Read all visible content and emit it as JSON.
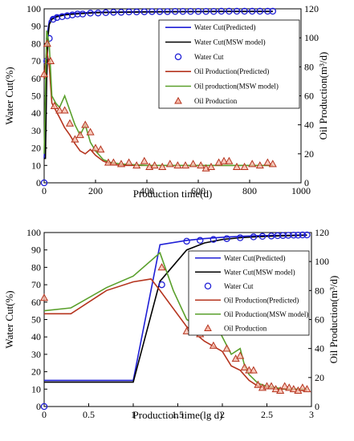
{
  "chart_data": [
    {
      "type": "line",
      "xlabel": "Production time(d)",
      "ylabel_left": "Water Cut(%)",
      "ylabel_right": "Oil Production(m³/d)",
      "xlim": [
        0,
        1000
      ],
      "ylim_left": [
        0,
        100
      ],
      "ylim_right": [
        0,
        120
      ],
      "x_ticks": [
        "0",
        "200",
        "400",
        "600",
        "800",
        "1000"
      ],
      "y_left_ticks": [
        "0",
        "10",
        "20",
        "30",
        "40",
        "50",
        "60",
        "70",
        "80",
        "90",
        "100"
      ],
      "y_right_ticks": [
        "0",
        "20",
        "40",
        "60",
        "80",
        "100",
        "120"
      ],
      "legend_position": "top-right",
      "series": [
        {
          "name": "Water Cut(Predicted)",
          "axis": "left",
          "style": "line",
          "color": "#1f1fd6",
          "x": [
            0,
            5,
            10,
            15,
            20,
            30,
            50,
            80,
            120,
            200,
            300,
            400,
            500,
            600,
            700,
            800,
            890
          ],
          "y": [
            14,
            30,
            70,
            88,
            93,
            95,
            96,
            97,
            97.5,
            98,
            98.2,
            98.4,
            98.5,
            98.5,
            98.6,
            98.6,
            98.6
          ]
        },
        {
          "name": "Water Cut(MSW model)",
          "axis": "left",
          "style": "line",
          "color": "#000000",
          "x": [
            0,
            5,
            10,
            15,
            20,
            30,
            50,
            80,
            120,
            200,
            300,
            400,
            500,
            600,
            700,
            800,
            890
          ],
          "y": [
            14,
            14,
            60,
            84,
            91,
            94,
            95.5,
            96.5,
            97,
            97.8,
            98,
            98.2,
            98.3,
            98.4,
            98.5,
            98.5,
            98.5
          ]
        },
        {
          "name": "Water Cut",
          "axis": "left",
          "style": "marker",
          "marker": "circle",
          "color": "#1f1fd6",
          "x": [
            0,
            10,
            20,
            35,
            50,
            70,
            90,
            110,
            130,
            150,
            180,
            210,
            240,
            270,
            300,
            330,
            360,
            390,
            420,
            450,
            480,
            510,
            540,
            570,
            600,
            630,
            660,
            690,
            720,
            750,
            780,
            810,
            840,
            870,
            890
          ],
          "y": [
            0,
            70,
            83,
            94,
            95,
            95.5,
            96,
            96.5,
            97,
            97,
            97.5,
            97.6,
            97.8,
            98,
            98,
            98.2,
            98.2,
            98.3,
            98.4,
            98.4,
            98.4,
            98.5,
            98.5,
            98.5,
            98.5,
            98.5,
            98.5,
            98.6,
            98.6,
            98.6,
            98.6,
            98.6,
            98.6,
            98.6,
            98.6
          ]
        },
        {
          "name": "Oil Production(Predicted)",
          "axis": "right",
          "style": "line",
          "color": "#b5341e",
          "x": [
            0,
            10,
            20,
            30,
            45,
            60,
            80,
            100,
            120,
            140,
            160,
            180,
            200,
            230,
            260,
            300,
            400,
            500,
            600,
            700,
            800,
            890
          ],
          "y": [
            72,
            92,
            80,
            55,
            50,
            45,
            38,
            33,
            27,
            22,
            20,
            23,
            19,
            15,
            13,
            12,
            12,
            12,
            12,
            12,
            12,
            12
          ]
        },
        {
          "name": "Oil production(MSW model)",
          "axis": "right",
          "style": "line",
          "color": "#5aa02c",
          "x": [
            0,
            10,
            20,
            30,
            45,
            60,
            80,
            100,
            120,
            140,
            160,
            180,
            200,
            230,
            260,
            300,
            400,
            500,
            600,
            700,
            800,
            890
          ],
          "y": [
            20,
            105,
            95,
            60,
            55,
            52,
            60,
            50,
            40,
            33,
            40,
            28,
            22,
            16,
            14,
            13,
            12,
            12,
            12,
            12,
            12,
            12
          ]
        },
        {
          "name": "Oil Production",
          "axis": "right",
          "style": "marker",
          "marker": "triangle",
          "color": "#b5341e",
          "x": [
            0,
            12,
            25,
            40,
            60,
            80,
            100,
            120,
            140,
            160,
            180,
            200,
            220,
            250,
            270,
            300,
            330,
            360,
            390,
            410,
            430,
            460,
            490,
            520,
            550,
            580,
            610,
            630,
            650,
            680,
            700,
            720,
            750,
            780,
            810,
            840,
            870,
            890
          ],
          "y": [
            75,
            96,
            84,
            53,
            50,
            50,
            41,
            30,
            33,
            40,
            35,
            24,
            23,
            14,
            14,
            13,
            14,
            12,
            15,
            11,
            12,
            11,
            13,
            12,
            12,
            13,
            12,
            10,
            11,
            14,
            15,
            15,
            11,
            11,
            13,
            12,
            14,
            13
          ]
        }
      ]
    },
    {
      "type": "line",
      "xlabel": "Production time(lg d)",
      "ylabel_left": "Water Cut(%)",
      "ylabel_right": "Oil Production(m³/d)",
      "xlim": [
        0,
        3
      ],
      "ylim_left": [
        0,
        100
      ],
      "ylim_right": [
        0,
        120
      ],
      "x_ticks": [
        "0",
        "0.5",
        "1",
        "1.5",
        "2",
        "2.5",
        "3"
      ],
      "y_left_ticks": [
        "0",
        "10",
        "20",
        "30",
        "40",
        "50",
        "60",
        "70",
        "80",
        "90",
        "100"
      ],
      "y_right_ticks": [
        "0",
        "20",
        "40",
        "60",
        "80",
        "100",
        "120"
      ],
      "legend_position": "top-right",
      "series": [
        {
          "name": "Water Cut(Predicted)",
          "axis": "left",
          "style": "line",
          "color": "#1f1fd6",
          "x": [
            0,
            1.0,
            1.3,
            1.6,
            1.8,
            2.0,
            2.2,
            2.4,
            2.6,
            2.8,
            2.95
          ],
          "y": [
            15,
            15,
            93,
            95.5,
            96.5,
            97.3,
            97.8,
            98.2,
            98.4,
            98.5,
            98.6
          ]
        },
        {
          "name": "Water Cut(MSW model)",
          "axis": "left",
          "style": "line",
          "color": "#000000",
          "x": [
            0,
            1.0,
            1.3,
            1.6,
            1.8,
            2.0,
            2.2,
            2.4,
            2.6,
            2.8,
            2.95
          ],
          "y": [
            14,
            14,
            72,
            90,
            94,
            96,
            97,
            97.6,
            98,
            98.3,
            98.5
          ]
        },
        {
          "name": "Water Cut",
          "axis": "left",
          "style": "marker",
          "marker": "circle",
          "color": "#1f1fd6",
          "x": [
            0,
            1.32,
            1.6,
            1.75,
            1.9,
            2.05,
            2.2,
            2.35,
            2.45,
            2.55,
            2.62,
            2.68,
            2.74,
            2.8,
            2.85,
            2.9,
            2.95
          ],
          "y": [
            0,
            70,
            95,
            95.5,
            96,
            96.5,
            97,
            97.5,
            97.8,
            98,
            98.2,
            98.3,
            98.4,
            98.5,
            98.5,
            98.6,
            98.6
          ]
        },
        {
          "name": "Oil Production(Predicted)",
          "axis": "right",
          "style": "line",
          "color": "#b5341e",
          "x": [
            0,
            0.3,
            0.7,
            1.0,
            1.2,
            1.3,
            1.6,
            1.8,
            2.0,
            2.1,
            2.2,
            2.3,
            2.4,
            2.5,
            2.6,
            2.7,
            2.8,
            2.9,
            2.95
          ],
          "y": [
            64,
            64,
            80,
            86,
            88,
            80,
            55,
            45,
            38,
            28,
            25,
            18,
            14,
            13,
            12,
            12,
            12,
            11,
            11
          ]
        },
        {
          "name": "Oil Production(MSW model)",
          "axis": "right",
          "style": "line",
          "color": "#5aa02c",
          "x": [
            0,
            0.3,
            0.7,
            1.0,
            1.3,
            1.45,
            1.6,
            1.75,
            1.9,
            2.0,
            2.1,
            2.2,
            2.25,
            2.3,
            2.4,
            2.5,
            2.6,
            2.7,
            2.8,
            2.9,
            2.95
          ],
          "y": [
            66,
            68,
            82,
            90,
            106,
            80,
            60,
            55,
            60,
            48,
            36,
            40,
            28,
            22,
            16,
            14,
            13,
            12,
            12,
            12,
            12
          ]
        },
        {
          "name": "Oil Production",
          "axis": "right",
          "style": "marker",
          "marker": "triangle",
          "color": "#b5341e",
          "x": [
            0,
            1.32,
            1.6,
            1.75,
            1.9,
            2.05,
            2.15,
            2.2,
            2.25,
            2.3,
            2.35,
            2.4,
            2.45,
            2.5,
            2.55,
            2.6,
            2.65,
            2.7,
            2.75,
            2.8,
            2.85,
            2.9,
            2.95
          ],
          "y": [
            75,
            96,
            52,
            50,
            42,
            40,
            33,
            35,
            27,
            25,
            25,
            15,
            13,
            14,
            14,
            12,
            11,
            14,
            13,
            12,
            11,
            13,
            12
          ]
        }
      ]
    }
  ]
}
